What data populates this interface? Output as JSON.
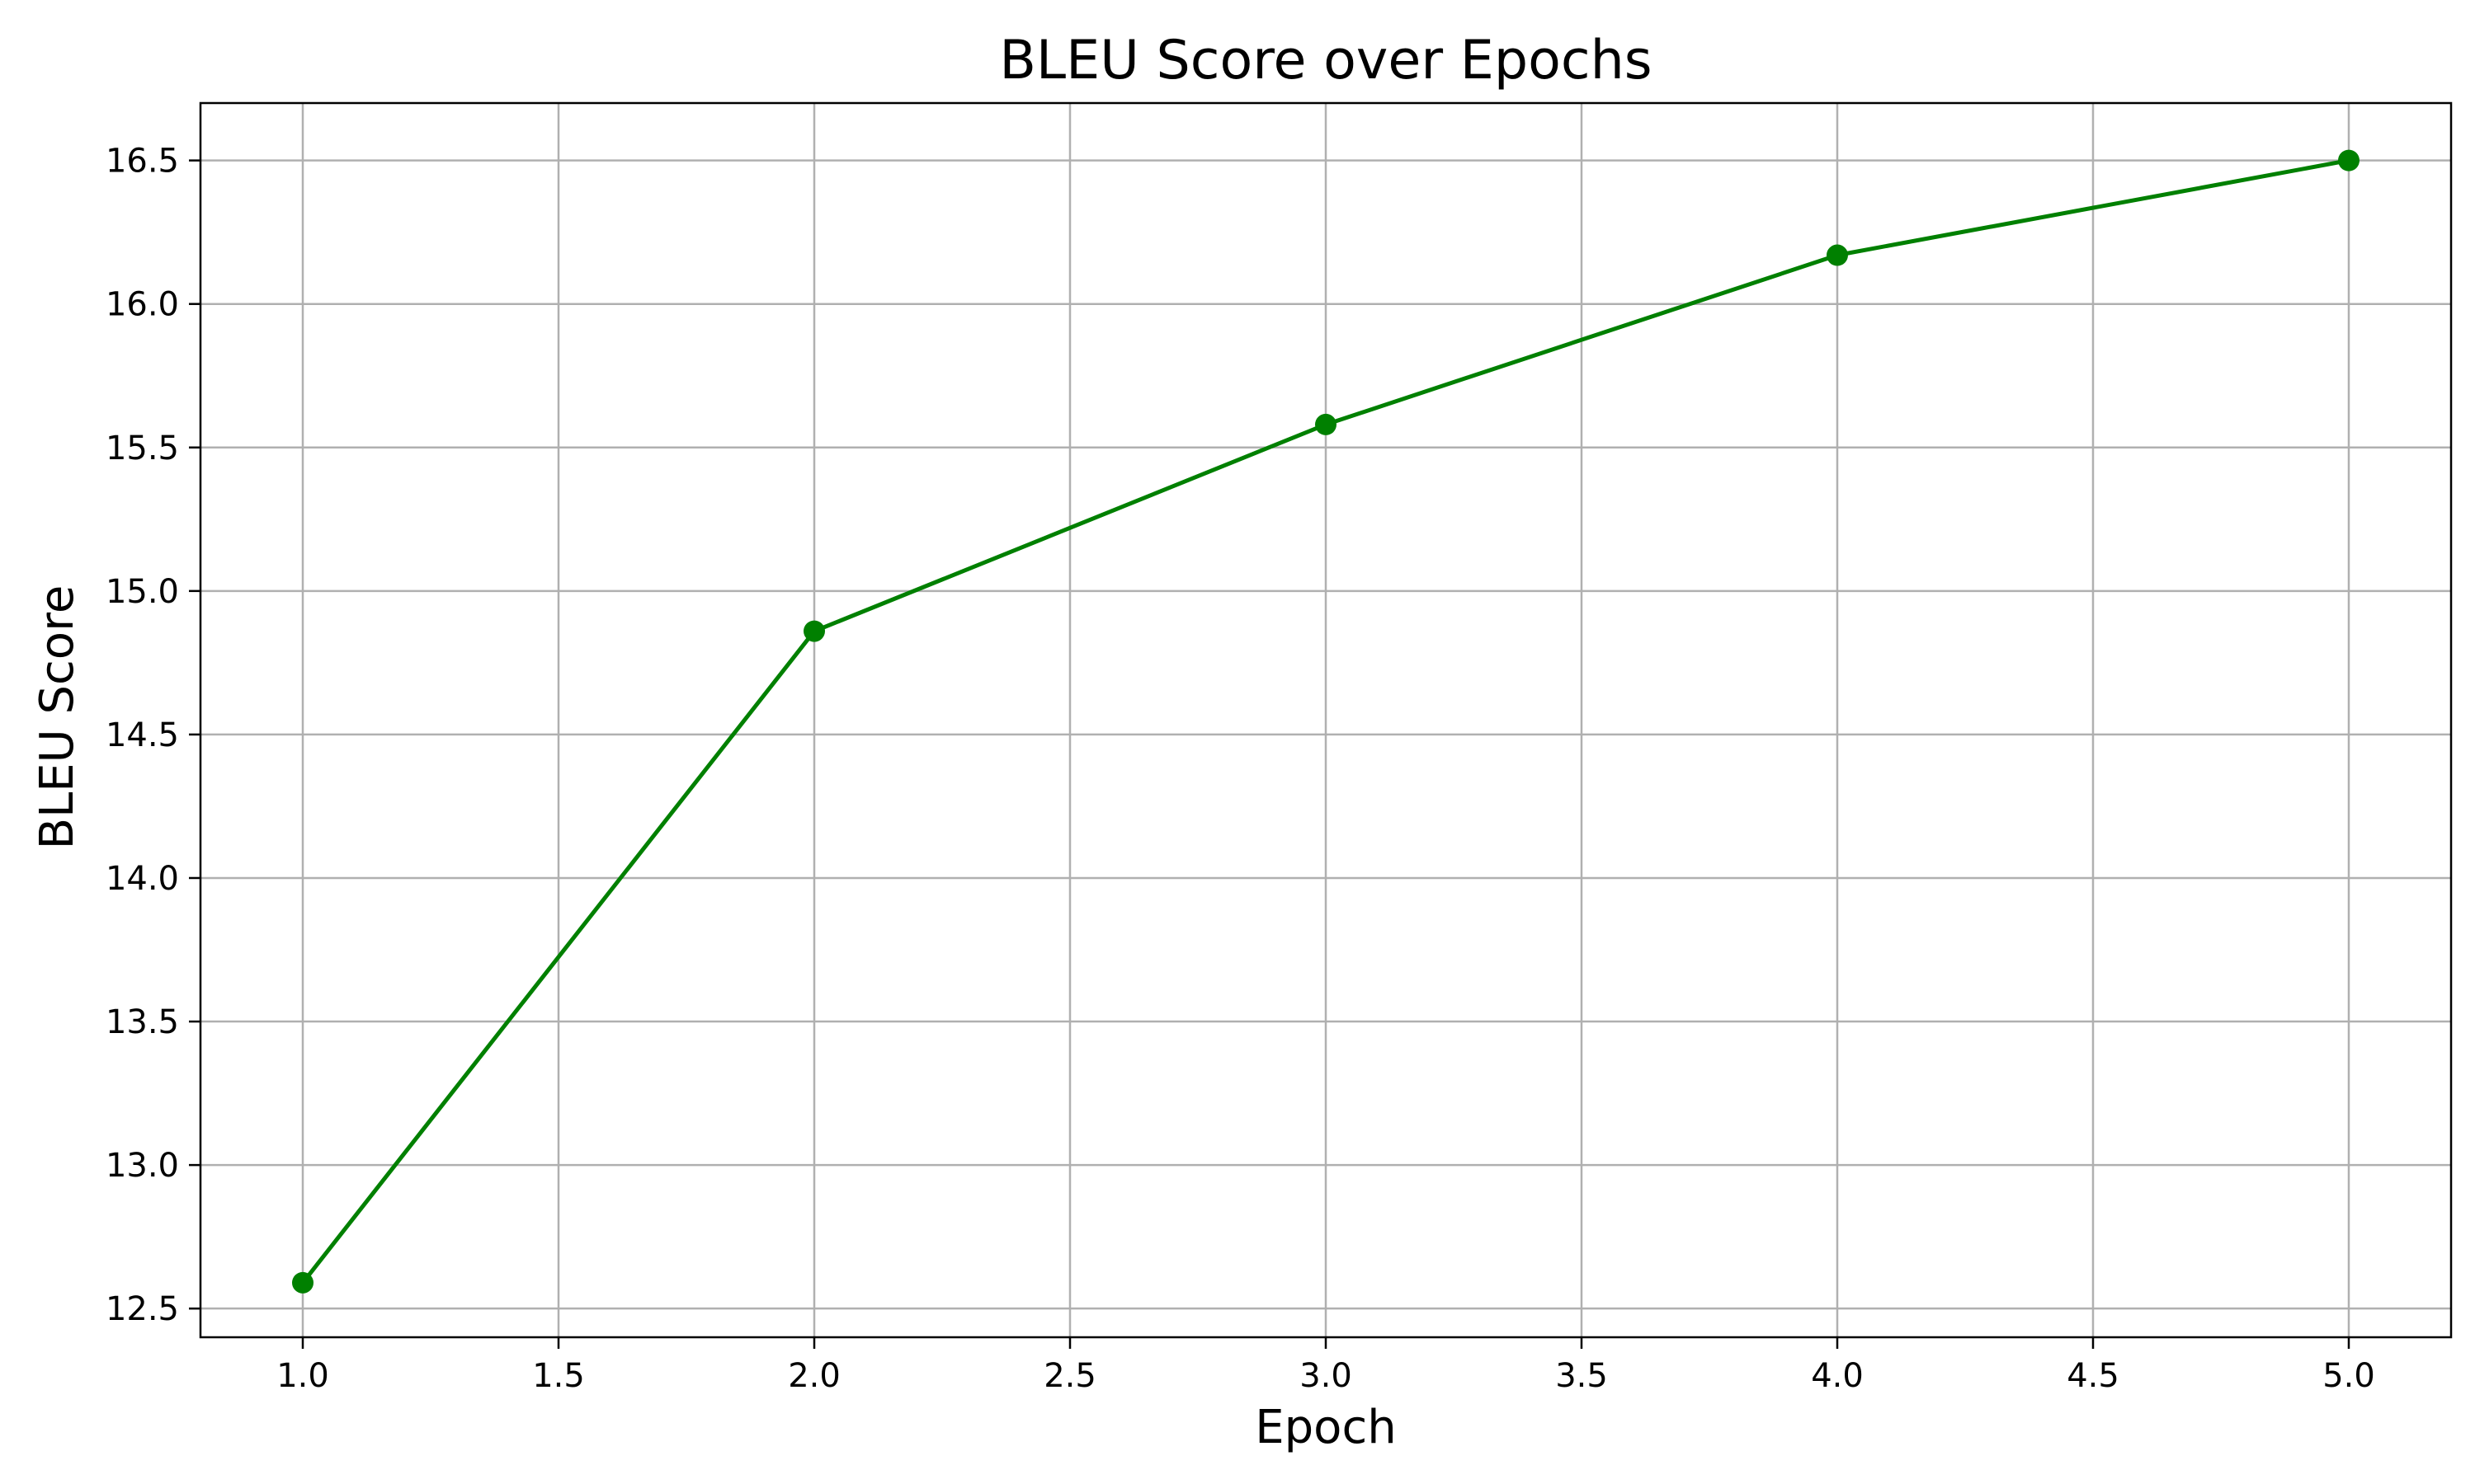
{
  "chart_data": {
    "type": "line",
    "title": "BLEU Score over Epochs",
    "xlabel": "Epoch",
    "ylabel": "BLEU Score",
    "xlim": [
      0.8,
      5.2
    ],
    "ylim": [
      12.4,
      16.7
    ],
    "x_ticks": [
      1.0,
      1.5,
      2.0,
      2.5,
      3.0,
      3.5,
      4.0,
      4.5,
      5.0
    ],
    "x_tick_labels": [
      "1.0",
      "1.5",
      "2.0",
      "2.5",
      "3.0",
      "3.5",
      "4.0",
      "4.5",
      "5.0"
    ],
    "y_ticks": [
      12.5,
      13.0,
      13.5,
      14.0,
      14.5,
      15.0,
      15.5,
      16.0,
      16.5
    ],
    "y_tick_labels": [
      "12.5",
      "13.0",
      "13.5",
      "14.0",
      "14.5",
      "15.0",
      "15.5",
      "16.0",
      "16.5"
    ],
    "grid": true,
    "legend": "none",
    "series": [
      {
        "color": "#008000",
        "marker": "circle",
        "x": [
          1,
          2,
          3,
          4,
          5
        ],
        "y": [
          12.59,
          14.86,
          15.58,
          16.17,
          16.5
        ]
      }
    ]
  }
}
